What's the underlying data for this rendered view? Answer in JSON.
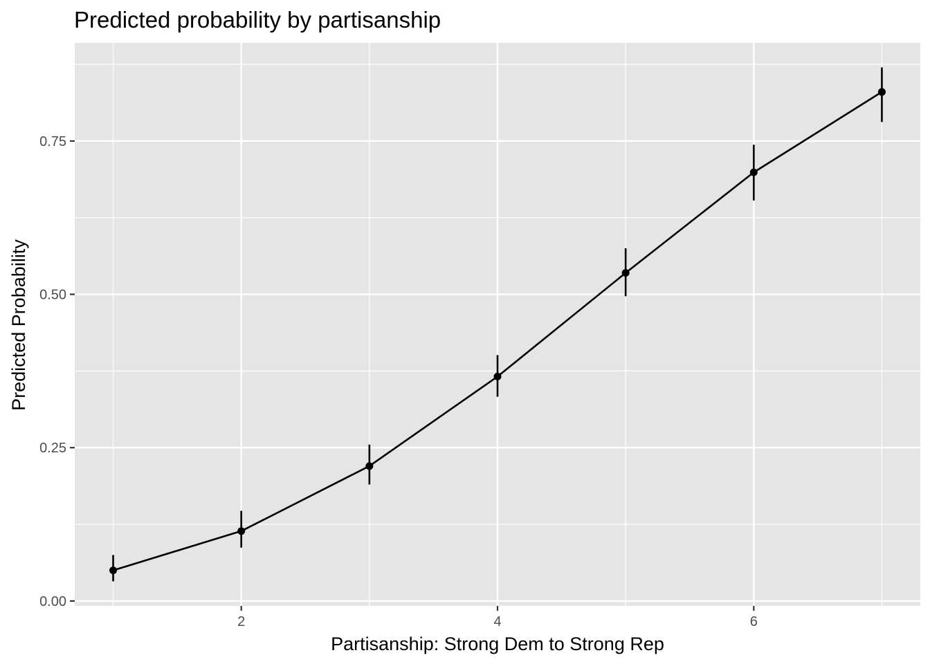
{
  "chart_data": {
    "type": "line",
    "title": "Predicted probability by partisanship",
    "xlabel": "Partisanship: Strong Dem to Strong Rep",
    "ylabel": "Predicted Probability",
    "x": [
      1,
      2,
      3,
      4,
      5,
      6,
      7
    ],
    "series": [
      {
        "values": [
          0.05,
          0.114,
          0.22,
          0.366,
          0.535,
          0.699,
          0.83
        ],
        "lower": [
          0.032,
          0.087,
          0.19,
          0.333,
          0.497,
          0.653,
          0.781
        ],
        "upper": [
          0.075,
          0.147,
          0.255,
          0.401,
          0.575,
          0.744,
          0.87
        ]
      }
    ],
    "xlim": [
      0.7,
      7.3
    ],
    "ylim": [
      -0.008,
      0.91
    ],
    "x_ticks": [
      2,
      4,
      6
    ],
    "x_tick_labels": [
      "2",
      "4",
      "6"
    ],
    "x_minor_ticks": [
      1,
      3,
      5,
      7
    ],
    "y_ticks": [
      0,
      0.25,
      0.5,
      0.75
    ],
    "y_tick_labels": [
      "0.00",
      "0.25",
      "0.50",
      "0.75"
    ],
    "y_minor_ticks": [
      0.125,
      0.375,
      0.625,
      0.875
    ],
    "grid": true,
    "colors": {
      "panel_background": "#e5e5e5",
      "grid": "#ffffff",
      "line": "#000000",
      "tick": "#333333"
    }
  }
}
